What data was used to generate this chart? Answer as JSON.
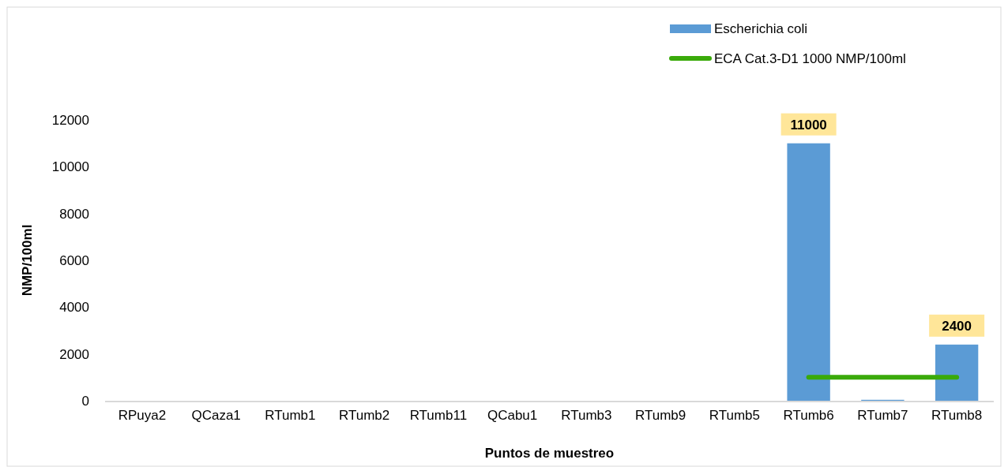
{
  "chart_data": {
    "type": "bar",
    "xlabel": "Puntos de muestreo",
    "ylabel": "NMP/100ml",
    "categories": [
      "RPuya2",
      "QCaza1",
      "RTumb1",
      "RTumb2",
      "RTumb11",
      "QCabu1",
      "RTumb3",
      "RTumb9",
      "RTumb5",
      "RTumb6",
      "RTumb7",
      "RTumb8"
    ],
    "series": [
      {
        "name": "Escherichia coli",
        "color": "#5b9bd5",
        "values": [
          null,
          null,
          null,
          null,
          null,
          null,
          null,
          null,
          null,
          11000,
          40,
          2400
        ],
        "value_labels": [
          null,
          null,
          null,
          null,
          null,
          null,
          null,
          null,
          null,
          "11000",
          null,
          "2400"
        ]
      },
      {
        "name": "ECA Cat.3-D1 1000 NMP/100ml",
        "type": "line",
        "color": "#3aaa0a",
        "values": [
          null,
          null,
          null,
          null,
          null,
          null,
          null,
          null,
          null,
          1000,
          1000,
          1000
        ]
      }
    ],
    "ylim": [
      0,
      12000
    ],
    "yticks": [
      0,
      2000,
      4000,
      6000,
      8000,
      10000,
      12000
    ],
    "grid": false,
    "legend": "top right"
  }
}
